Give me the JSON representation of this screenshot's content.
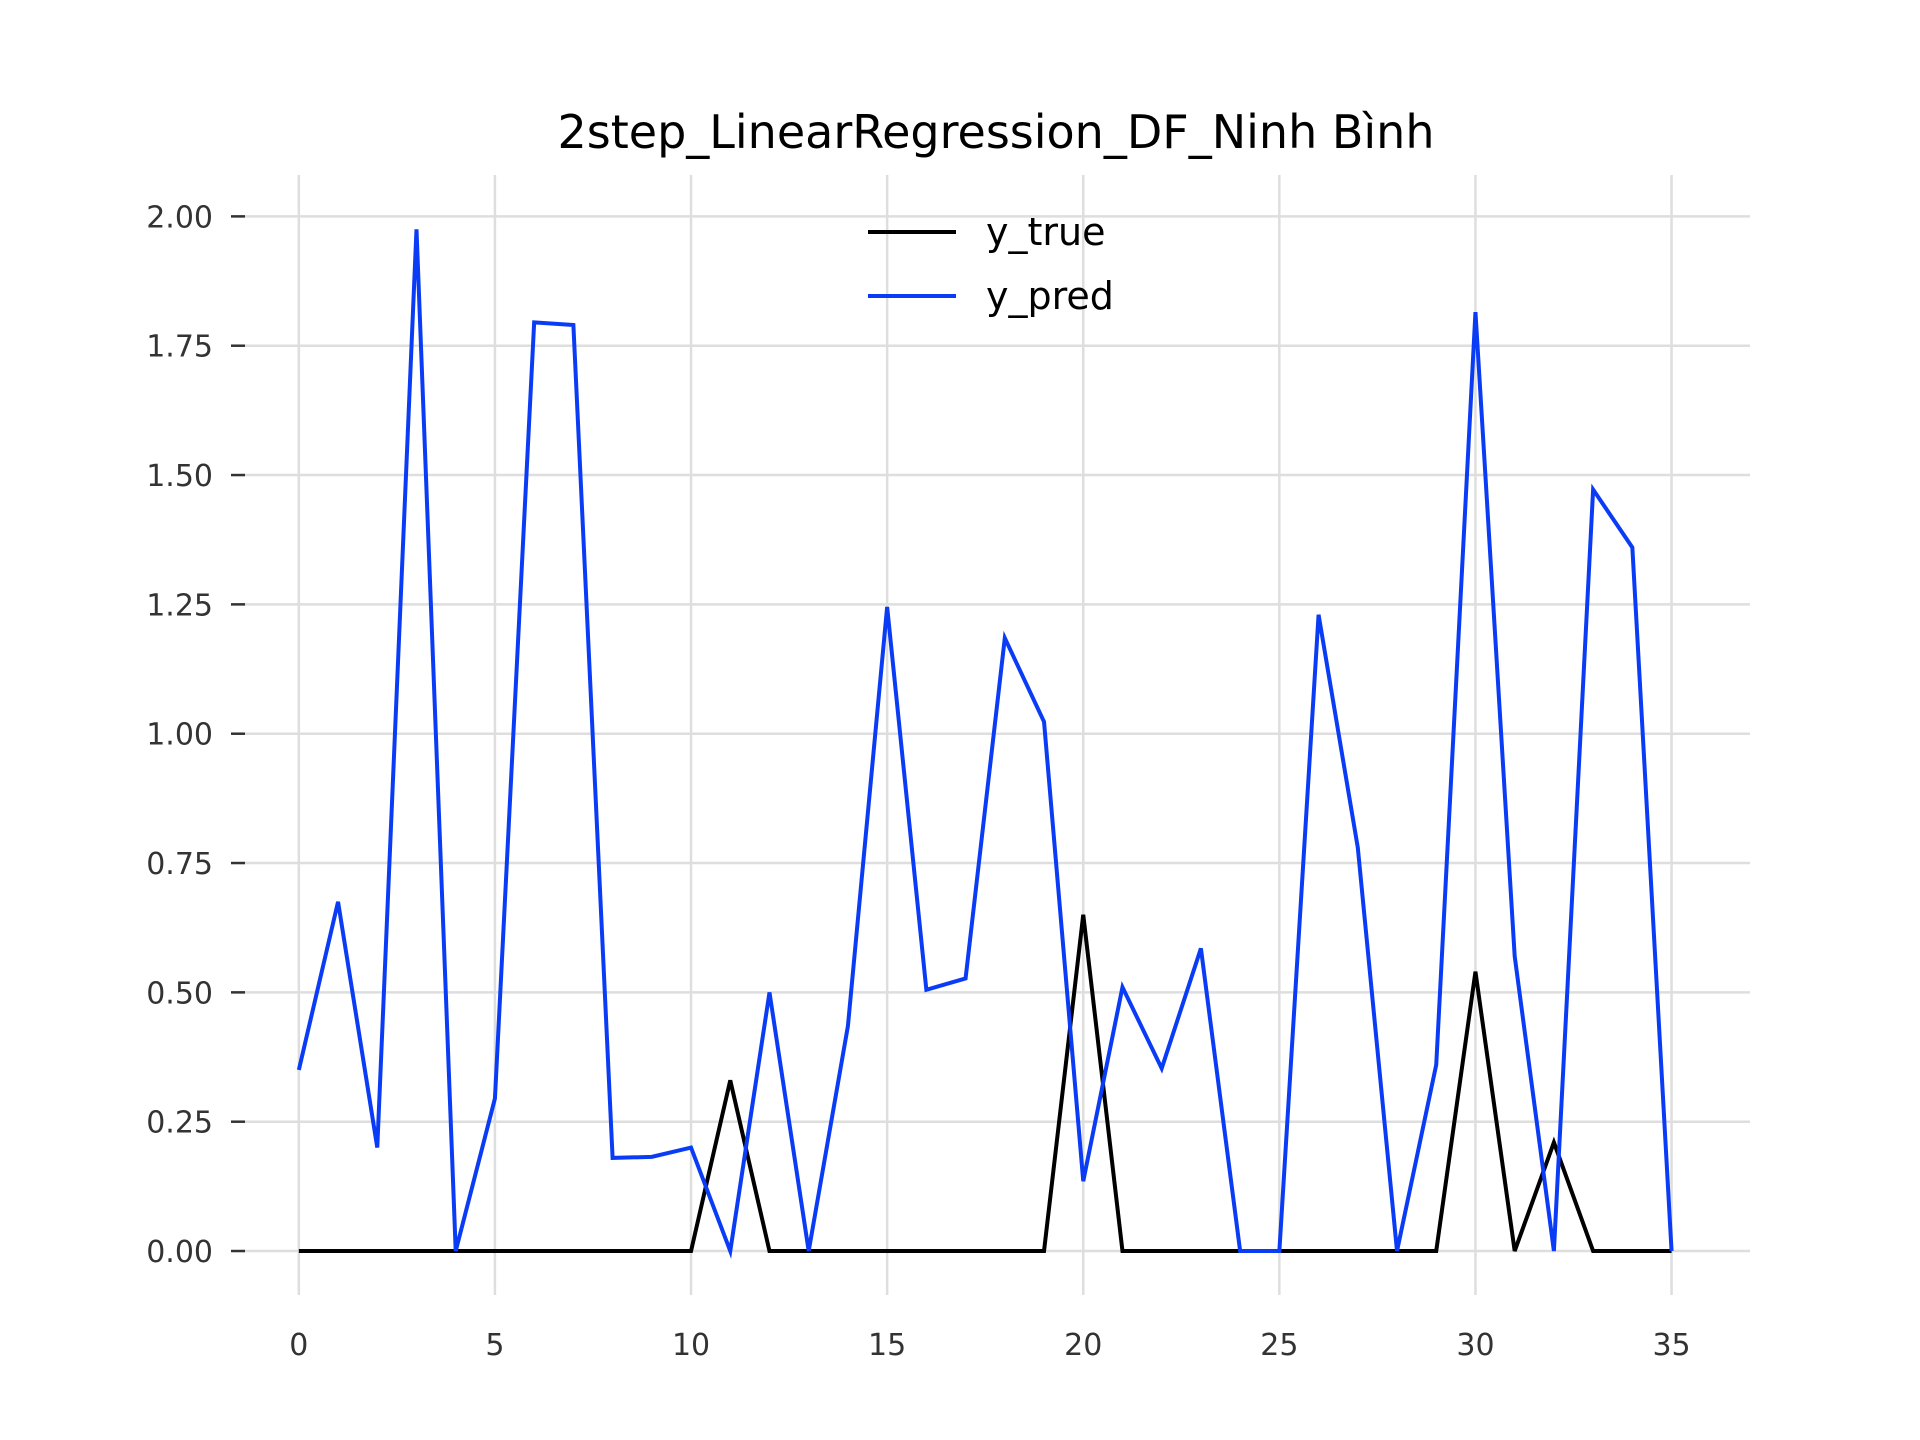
{
  "chart_data": {
    "type": "line",
    "title": "2step_LinearRegression_DF_Ninh Bình",
    "xlabel": "",
    "ylabel": "",
    "x": [
      0,
      1,
      2,
      3,
      4,
      5,
      6,
      7,
      8,
      9,
      10,
      11,
      12,
      13,
      14,
      15,
      16,
      17,
      18,
      19,
      20,
      21,
      22,
      23,
      24,
      25,
      26,
      27,
      28,
      29,
      30,
      31,
      32,
      33,
      34,
      35
    ],
    "xlim": [
      -1.5,
      37
    ],
    "ylim": [
      -0.085,
      2.08
    ],
    "xticks": [
      0,
      5,
      10,
      15,
      20,
      25,
      30,
      35
    ],
    "yticks": [
      0.0,
      0.25,
      0.5,
      0.75,
      1.0,
      1.25,
      1.5,
      1.75,
      2.0
    ],
    "xtick_labels": [
      "0",
      "5",
      "10",
      "15",
      "20",
      "25",
      "30",
      "35"
    ],
    "ytick_labels": [
      "0.00",
      "0.25",
      "0.50",
      "0.75",
      "1.00",
      "1.25",
      "1.50",
      "1.75",
      "2.00"
    ],
    "grid": true,
    "legend_position": "top-center",
    "series": [
      {
        "name": "y_true",
        "color": "#000000",
        "values": [
          0,
          0,
          0,
          0,
          0,
          0,
          0,
          0,
          0,
          0,
          0,
          0.33,
          0,
          0,
          0,
          0,
          0,
          0,
          0,
          0,
          0.65,
          0,
          0,
          0,
          0,
          0,
          0,
          0,
          0,
          0,
          0.54,
          0,
          0.21,
          0,
          0,
          0
        ]
      },
      {
        "name": "y_pred",
        "color": "#0a3cf5",
        "values": [
          0.35,
          0.675,
          0.2,
          1.975,
          0,
          0.295,
          1.795,
          1.79,
          0.18,
          0.182,
          0.2,
          0,
          0.5,
          0,
          0.435,
          1.245,
          0.505,
          0.527,
          1.185,
          1.023,
          0.135,
          0.51,
          0.353,
          0.585,
          0,
          0,
          1.23,
          0.78,
          0,
          0.36,
          1.815,
          0.57,
          0,
          1.472,
          1.36,
          0
        ]
      }
    ]
  }
}
